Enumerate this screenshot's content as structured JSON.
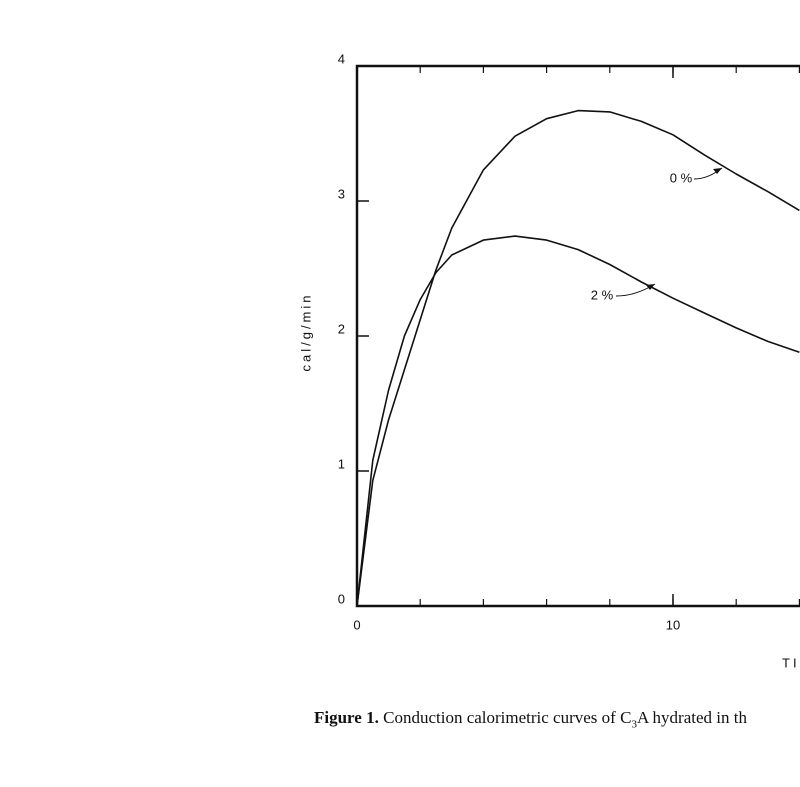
{
  "chart_data": {
    "type": "line",
    "y_label": "cal/g/min",
    "x_label": "TI",
    "x": [
      0,
      0.5,
      1,
      1.5,
      2,
      2.5,
      3,
      4,
      5,
      6,
      7,
      8,
      9,
      10,
      11,
      12,
      13,
      14
    ],
    "series": [
      {
        "name": "0 %",
        "color": "#111111",
        "values": [
          0,
          0.93,
          1.38,
          1.75,
          2.12,
          2.49,
          2.8,
          3.23,
          3.48,
          3.61,
          3.67,
          3.66,
          3.59,
          3.49,
          3.34,
          3.2,
          3.07,
          2.93
        ]
      },
      {
        "name": "2 %",
        "color": "#111111",
        "values": [
          0,
          1.08,
          1.6,
          2.0,
          2.27,
          2.47,
          2.6,
          2.71,
          2.74,
          2.71,
          2.64,
          2.53,
          2.4,
          2.28,
          2.17,
          2.06,
          1.96,
          1.88
        ]
      }
    ],
    "xlim": [
      0,
      14
    ],
    "xticks": [
      0,
      10
    ],
    "ylim": [
      0,
      4
    ],
    "yticks": [
      0,
      1,
      2,
      3,
      4
    ],
    "caption": {
      "lead": "Figure 1.",
      "text1": "Conduction calorimetric curves of C",
      "sub": "3",
      "text2": "A hydrated in th"
    }
  }
}
